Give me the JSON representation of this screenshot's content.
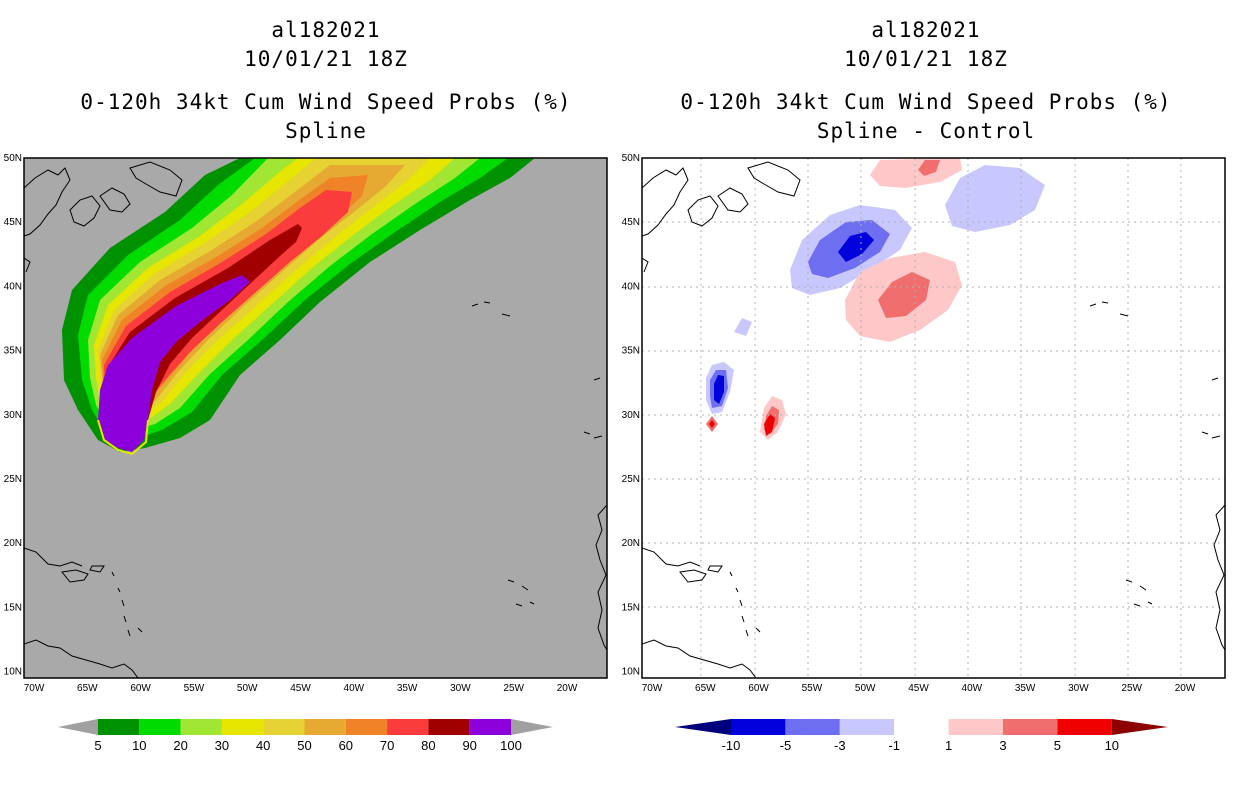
{
  "left_panel": {
    "title_lines": [
      "al182021",
      "10/01/21 18Z",
      "0-120h 34kt Cum Wind Speed Probs (%)",
      "Spline"
    ],
    "colorbar": {
      "labels": [
        "5",
        "10",
        "20",
        "30",
        "40",
        "50",
        "60",
        "70",
        "80",
        "90",
        "100"
      ],
      "colors": [
        "#009100",
        "#00dc00",
        "#a1e632",
        "#e6e600",
        "#e6d232",
        "#e6aa32",
        "#f08228",
        "#fa3c3c",
        "#a00000",
        "#8c00dc"
      ],
      "end_color": "#a0a0a0"
    }
  },
  "right_panel": {
    "title_lines": [
      "al182021",
      "10/01/21 18Z",
      "0-120h 34kt Cum Wind Speed Probs (%)",
      "Spline - Control"
    ],
    "colorbar": {
      "labels": [
        "-10",
        "-5",
        "-3",
        "-1",
        "1",
        "3",
        "5",
        "10"
      ],
      "colors": [
        "#0000dc",
        "#6e6ef0",
        "#c8c8ff",
        "#ffffff",
        "#ffc8c8",
        "#f06e6e",
        "#f00000"
      ],
      "low_end_color": "#00007d",
      "high_end_color": "#8c0000"
    }
  },
  "axes": {
    "lat_labels": [
      "50N",
      "45N",
      "40N",
      "35N",
      "30N",
      "25N",
      "20N",
      "15N",
      "10N"
    ],
    "lon_labels": [
      "70W",
      "65W",
      "60W",
      "55W",
      "50W",
      "45W",
      "40W",
      "35W",
      "30W",
      "25W",
      "20W"
    ]
  },
  "colors": {
    "background_ocean": "#a9a9a9",
    "frame": "#000000"
  }
}
